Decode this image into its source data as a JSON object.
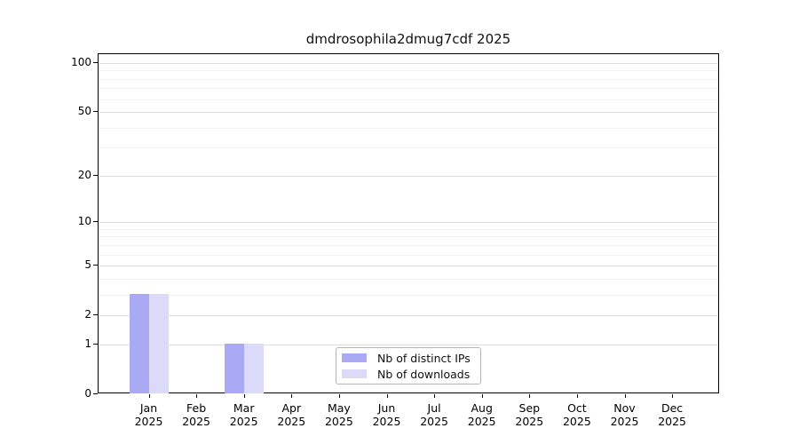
{
  "chart_data": {
    "type": "bar",
    "title": "dmdrosophila2dmug7cdf 2025",
    "categories": [
      "Jan",
      "Feb",
      "Mar",
      "Apr",
      "May",
      "Jun",
      "Jul",
      "Aug",
      "Sep",
      "Oct",
      "Nov",
      "Dec"
    ],
    "category_year": "2025",
    "series": [
      {
        "name": "Nb of distinct IPs",
        "color": "#a9a9f4",
        "values": [
          3,
          0,
          1,
          0,
          0,
          0,
          0,
          0,
          0,
          0,
          0,
          0
        ]
      },
      {
        "name": "Nb of downloads",
        "color": "#dbdbf9",
        "values": [
          3,
          0,
          1,
          0,
          0,
          0,
          0,
          0,
          0,
          0,
          0,
          0
        ]
      }
    ],
    "yscale": "log10(1+y)",
    "ylim": [
      0,
      100
    ],
    "yticks_major": [
      0,
      1,
      2,
      5,
      10,
      20,
      50,
      100
    ],
    "yticks_minor": [
      3,
      4,
      6,
      7,
      8,
      9,
      30,
      40,
      60,
      70,
      80,
      90
    ],
    "grid": true,
    "legend_position": "bottom-center"
  }
}
